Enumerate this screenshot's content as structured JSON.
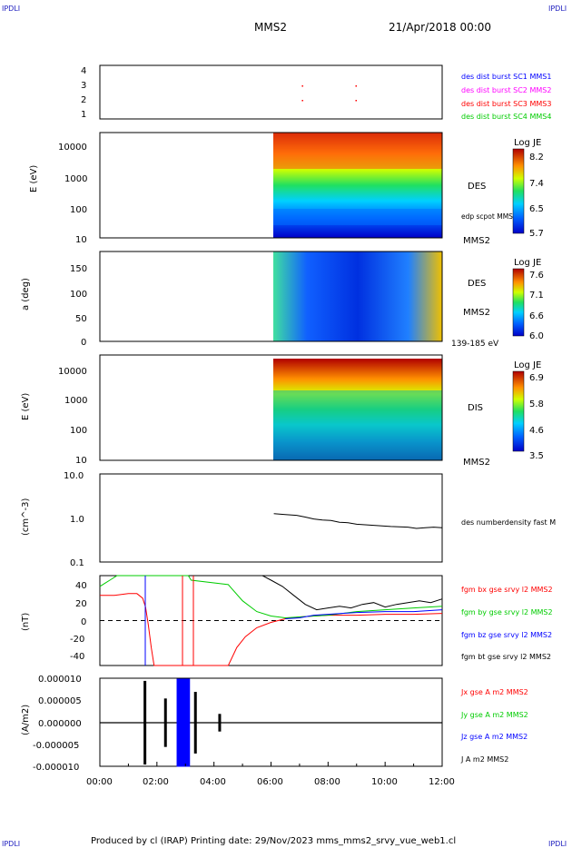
{
  "corner_marks": {
    "top_left": "IPDLI",
    "top_right": "IPDLI",
    "bottom_left": "IPDLI",
    "bottom_right": "IPDLI"
  },
  "header": {
    "title": "MMS2",
    "date": "21/Apr/2018 00:00"
  },
  "footer": {
    "text": "Produced by cl (IRAP)   Printing date: 29/Nov/2023   mms_mms2_srvy_vue_web1.cl"
  },
  "colors": {
    "blue": "#0000ff",
    "magenta": "#ff00ff",
    "red": "#ff0000",
    "green": "#00cc00",
    "black": "#000000"
  },
  "time_axis": {
    "ticks": [
      "00:00",
      "02:00",
      "04:00",
      "06:00",
      "08:00",
      "10:00",
      "12:00"
    ],
    "range_hours": [
      0,
      12
    ]
  },
  "chart_data": [
    {
      "type": "scatter",
      "panel": "sc-position",
      "yticks": [
        "4",
        "3",
        "2",
        "1"
      ],
      "ylim": [
        1,
        4
      ],
      "legend": [
        {
          "name": "des dist burst SC1 MMS1",
          "color": "#0000ff"
        },
        {
          "name": "des dist burst SC2 MMS2",
          "color": "#ff00ff"
        },
        {
          "name": "des dist burst SC3 MMS3",
          "color": "#ff0000"
        },
        {
          "name": "des dist burst SC4 MMS4",
          "color": "#00cc00"
        }
      ],
      "points": [
        {
          "x": 7.08,
          "y": 3
        },
        {
          "x": 7.08,
          "y": 2
        },
        {
          "x": 8.96,
          "y": 3
        },
        {
          "x": 8.96,
          "y": 2
        }
      ]
    },
    {
      "type": "heatmap",
      "panel": "des-energy",
      "ylabel": "E (eV)",
      "yscale": "log",
      "yticks": [
        "10000",
        "1000",
        "100",
        "10"
      ],
      "ylim": [
        10,
        30000
      ],
      "data_start_hours": 6.0,
      "label": "DES",
      "sublabel": "edp scpot MMS2",
      "spacecraft": "MMS2",
      "colorbar": {
        "title": "Log JE",
        "ticks": [
          "8.2",
          "7.4",
          "6.5",
          "5.7"
        ],
        "range": [
          5.7,
          8.2
        ]
      }
    },
    {
      "type": "heatmap",
      "panel": "des-pitch-angle",
      "ylabel": "a (deg)",
      "yticks": [
        "150",
        "100",
        "50",
        "0"
      ],
      "ylim": [
        0,
        180
      ],
      "data_start_hours": 6.0,
      "label": "DES",
      "spacecraft": "MMS2",
      "energy_range": "139-185 eV",
      "colorbar": {
        "title": "Log JE",
        "ticks": [
          "7.6",
          "7.1",
          "6.6",
          "6.0"
        ],
        "range": [
          6.0,
          7.6
        ]
      }
    },
    {
      "type": "heatmap",
      "panel": "dis-energy",
      "ylabel": "E (eV)",
      "yscale": "log",
      "yticks": [
        "10000",
        "1000",
        "100",
        "10"
      ],
      "ylim": [
        10,
        30000
      ],
      "data_start_hours": 6.0,
      "label": "DIS",
      "spacecraft": "MMS2",
      "colorbar": {
        "title": "Log JE",
        "ticks": [
          "6.9",
          "5.8",
          "4.6",
          "3.5"
        ],
        "range": [
          3.5,
          6.9
        ]
      }
    },
    {
      "type": "line",
      "panel": "density",
      "ylabel": "(cm^-3)",
      "yscale": "log",
      "yticks": [
        "10.0",
        "1.0",
        "0.1"
      ],
      "ylim": [
        0.1,
        10
      ],
      "series": [
        {
          "name": "des numberdensity fast M",
          "color": "#000000",
          "x": [
            6.1,
            6.5,
            6.9,
            7.2,
            7.5,
            7.8,
            8.1,
            8.4,
            8.7,
            9.0,
            9.3,
            9.6,
            9.9,
            10.2,
            10.5,
            10.8,
            11.1,
            11.4,
            11.7,
            12.0
          ],
          "y": [
            1.25,
            1.2,
            1.15,
            1.05,
            0.95,
            0.9,
            0.88,
            0.8,
            0.78,
            0.72,
            0.7,
            0.68,
            0.66,
            0.64,
            0.63,
            0.62,
            0.58,
            0.6,
            0.62,
            0.6
          ]
        }
      ]
    },
    {
      "type": "line",
      "panel": "magnetic-field",
      "ylabel": "(nT)",
      "yticks": [
        "40",
        "20",
        "0",
        "-20",
        "-40"
      ],
      "ylim": [
        -50,
        50
      ],
      "zero_line": true,
      "series": [
        {
          "name": "fgm bx gse srvy l2 MMS2",
          "color": "#ff0000",
          "x": [
            0,
            0.5,
            1.0,
            1.3,
            1.5,
            1.6,
            1.7,
            1.8,
            1.9,
            4.5,
            4.8,
            5.1,
            5.5,
            6.0,
            6.5,
            7.0,
            7.5,
            8.0,
            9.0,
            10.0,
            11.0,
            12.0
          ],
          "y": [
            28,
            28,
            30,
            30,
            25,
            15,
            -5,
            -30,
            -50,
            -50,
            -30,
            -18,
            -8,
            -2,
            2,
            4,
            5,
            6,
            6,
            7,
            7,
            8
          ]
        },
        {
          "name": "fgm by gse srvy l2 MMS2",
          "color": "#00cc00",
          "x": [
            0,
            0.2,
            0.4,
            0.6,
            3.1,
            3.2,
            4.5,
            5.0,
            5.5,
            6.0,
            6.5,
            7.0,
            7.5,
            8.0,
            9.0,
            10.0,
            11.0,
            12.0
          ],
          "y": [
            38,
            42,
            46,
            50,
            50,
            45,
            40,
            22,
            10,
            5,
            3,
            4,
            5,
            6,
            10,
            12,
            14,
            16
          ]
        },
        {
          "name": "fgm bz gse srvy l2 MMS2",
          "color": "#0000ff",
          "x": [
            6.5,
            7.0,
            7.5,
            8.0,
            9.0,
            10.0,
            11.0,
            12.0
          ],
          "y": [
            2,
            3,
            6,
            7,
            9,
            10,
            10,
            12
          ]
        },
        {
          "name": "fgm bt gse srvy l2 MMS2",
          "color": "#000000",
          "x": [
            5.7,
            6.0,
            6.4,
            6.8,
            7.2,
            7.6,
            8.0,
            8.4,
            8.8,
            9.2,
            9.6,
            10.0,
            10.4,
            10.8,
            11.2,
            11.6,
            12.0
          ],
          "y": [
            50,
            45,
            38,
            28,
            18,
            12,
            14,
            16,
            14,
            18,
            20,
            15,
            18,
            20,
            22,
            20,
            24
          ]
        }
      ]
    },
    {
      "type": "line",
      "panel": "current-density",
      "ylabel": "(A/m2)",
      "yticks": [
        "0.000010",
        "0.000005",
        "0.000000",
        "-0.000005",
        "-0.000010"
      ],
      "ylim": [
        -1e-05,
        1e-05
      ],
      "series": [
        {
          "name": "Jx gse A m2 MMS2",
          "color": "#ff0000"
        },
        {
          "name": "Jy gse A m2 MMS2",
          "color": "#00cc00"
        },
        {
          "name": "Jz gse A m2 MMS2",
          "color": "#0000ff"
        },
        {
          "name": "J A m2 MMS2",
          "color": "#000000"
        }
      ],
      "spikes": [
        {
          "x": 1.58,
          "y": 9.5e-06
        },
        {
          "x": 2.3,
          "y": 5.5e-06
        },
        {
          "x": 2.85,
          "y": 1e-05
        },
        {
          "x": 3.0,
          "y": 1e-05
        },
        {
          "x": 3.35,
          "y": 7e-06
        },
        {
          "x": 4.2,
          "y": 2e-06
        }
      ]
    }
  ]
}
